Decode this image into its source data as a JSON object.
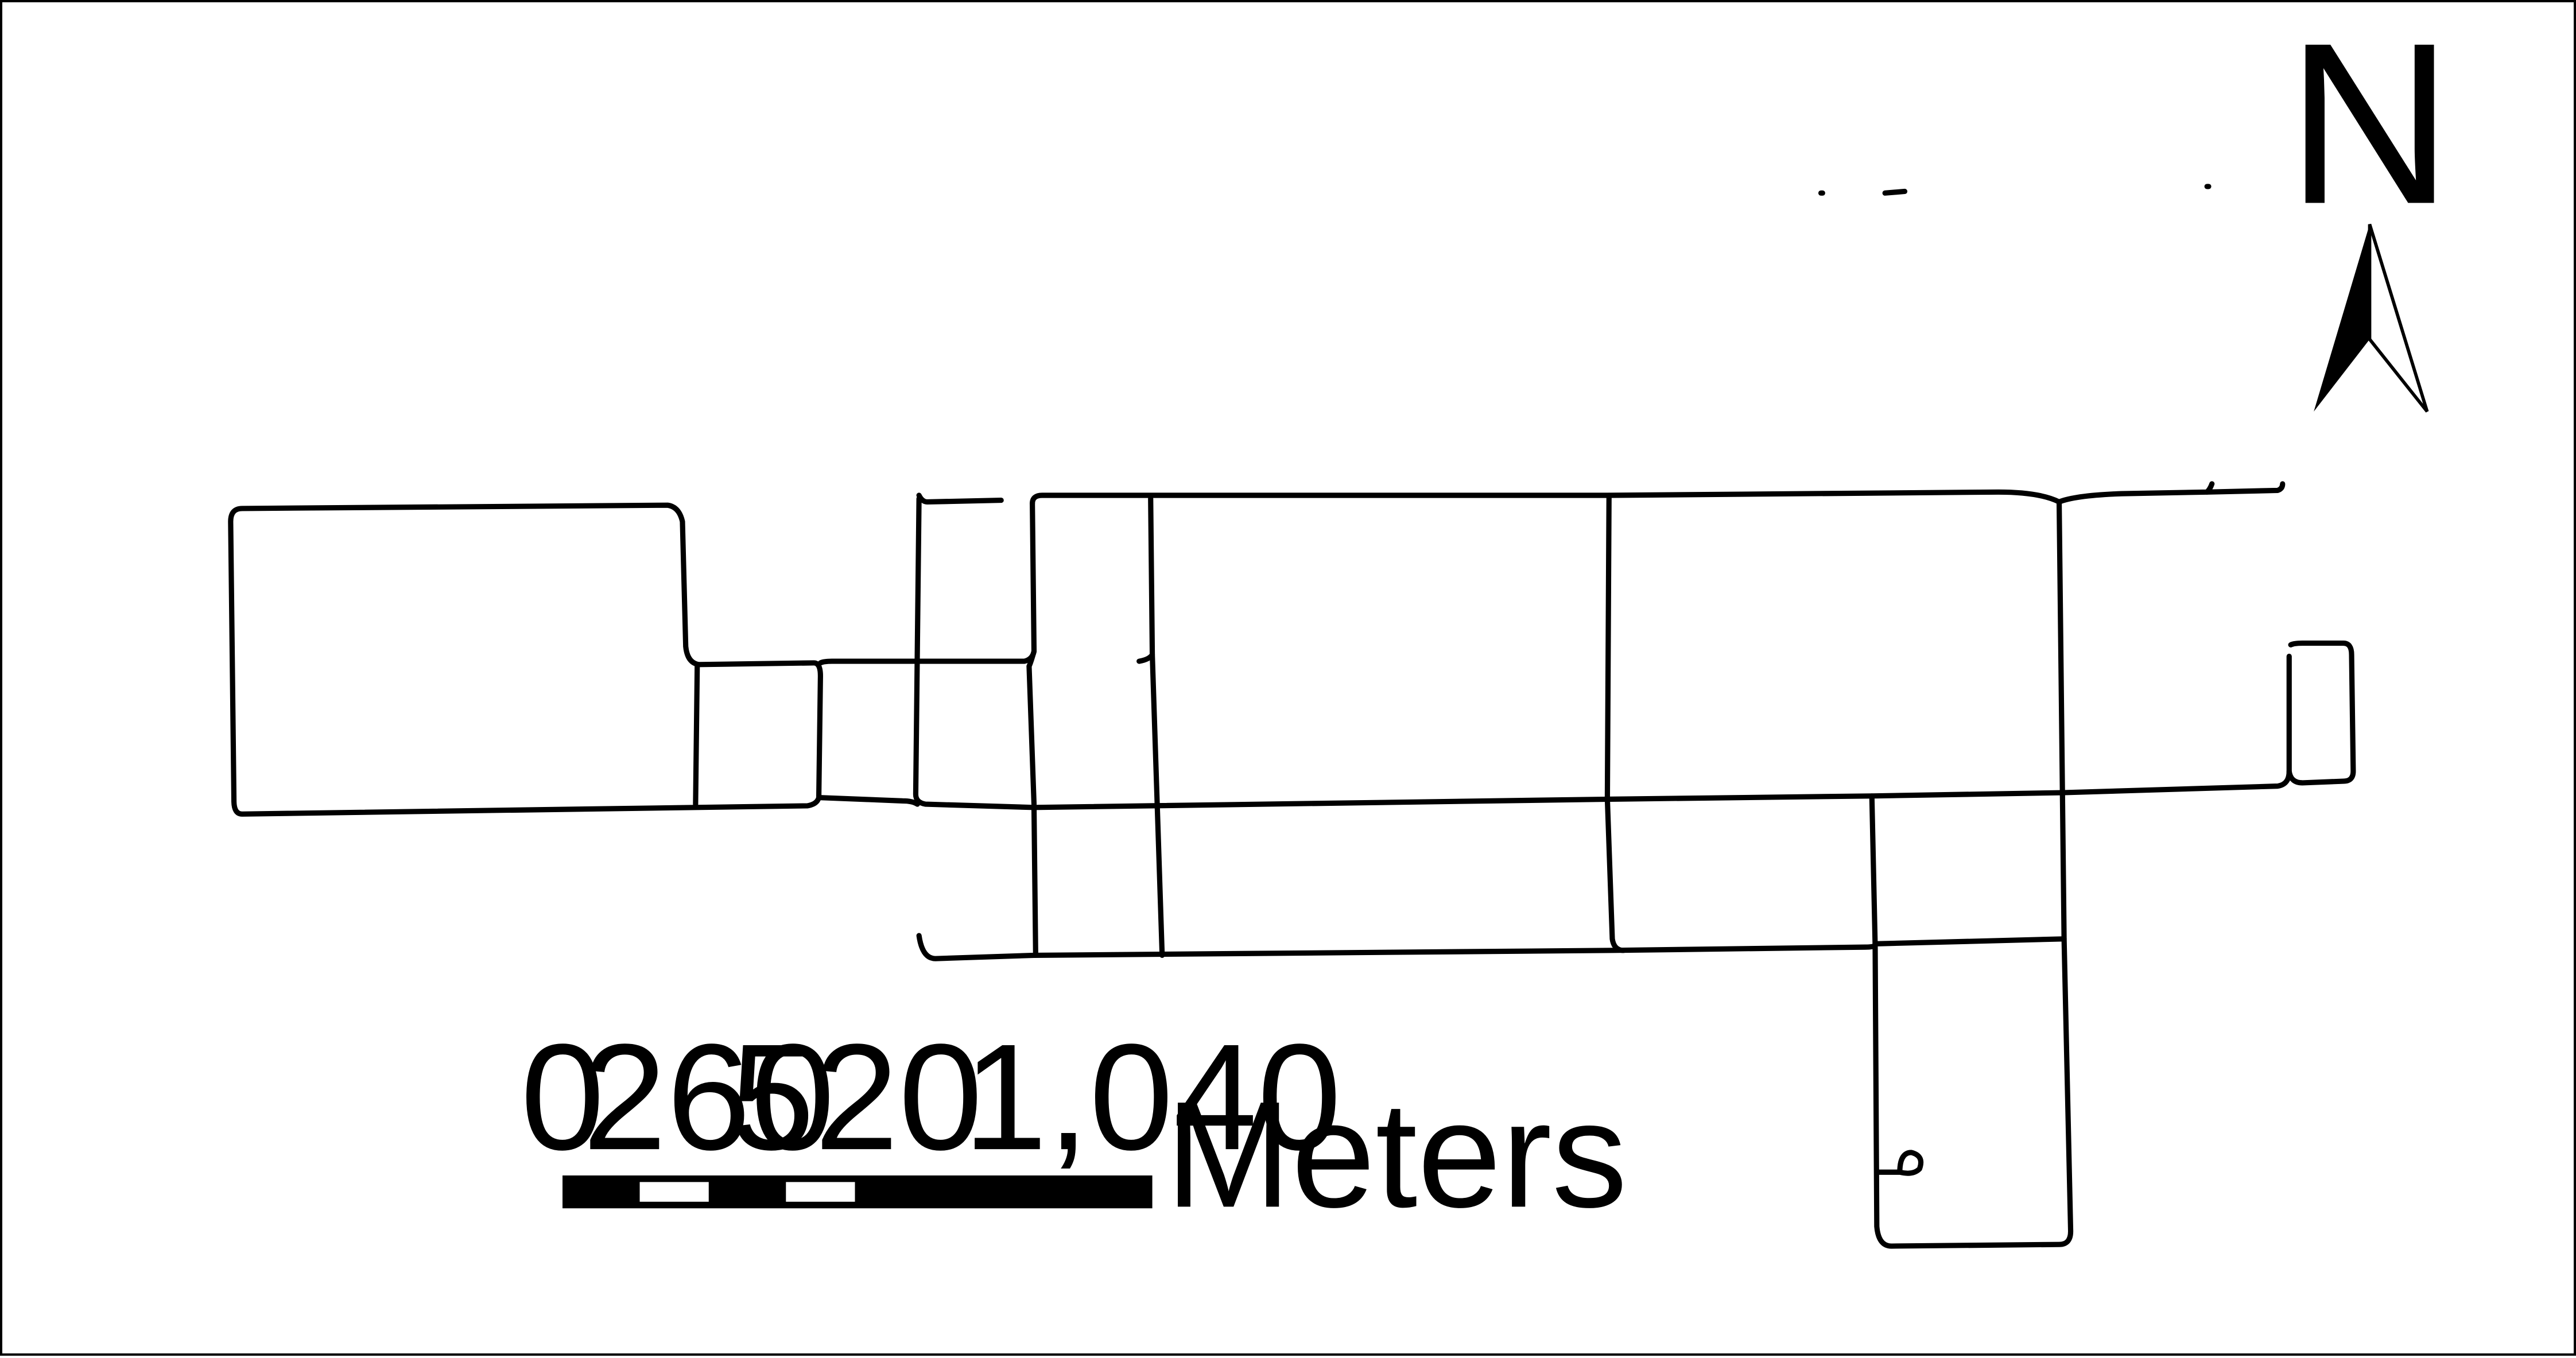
{
  "map": {
    "north_arrow": {
      "label": "N"
    },
    "scale_bar": {
      "ticks": [
        "0",
        "260",
        "520",
        "1,040"
      ],
      "unit": "Meters"
    },
    "colors": {
      "lines": "#000000",
      "background": "#ffffff"
    }
  }
}
